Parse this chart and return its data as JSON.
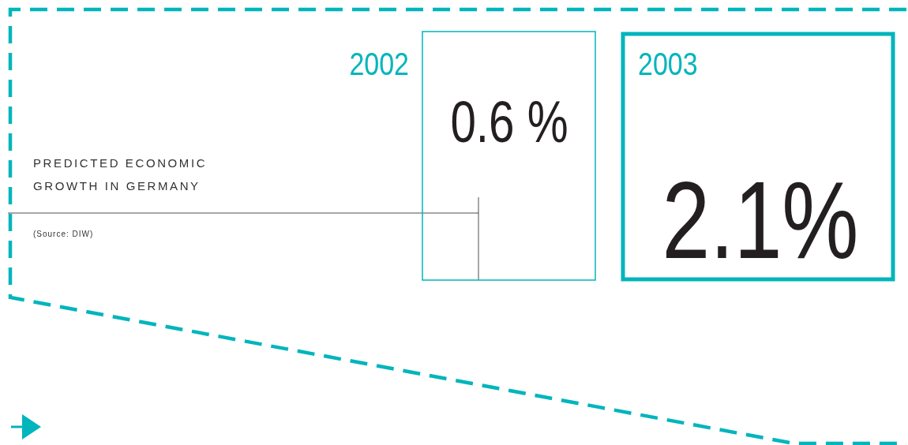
{
  "chart_data": {
    "type": "other",
    "title": "PREDICTED ECONOMIC GROWTH IN GERMANY",
    "annotations": [
      "(Source: DIW)"
    ],
    "categories": [
      "2002",
      "2003"
    ],
    "values": [
      0.6,
      2.1
    ],
    "value_labels": [
      "0.6 %",
      "2.1%"
    ],
    "colors": [
      "#00b5bc",
      "#00b5bc"
    ]
  }
}
